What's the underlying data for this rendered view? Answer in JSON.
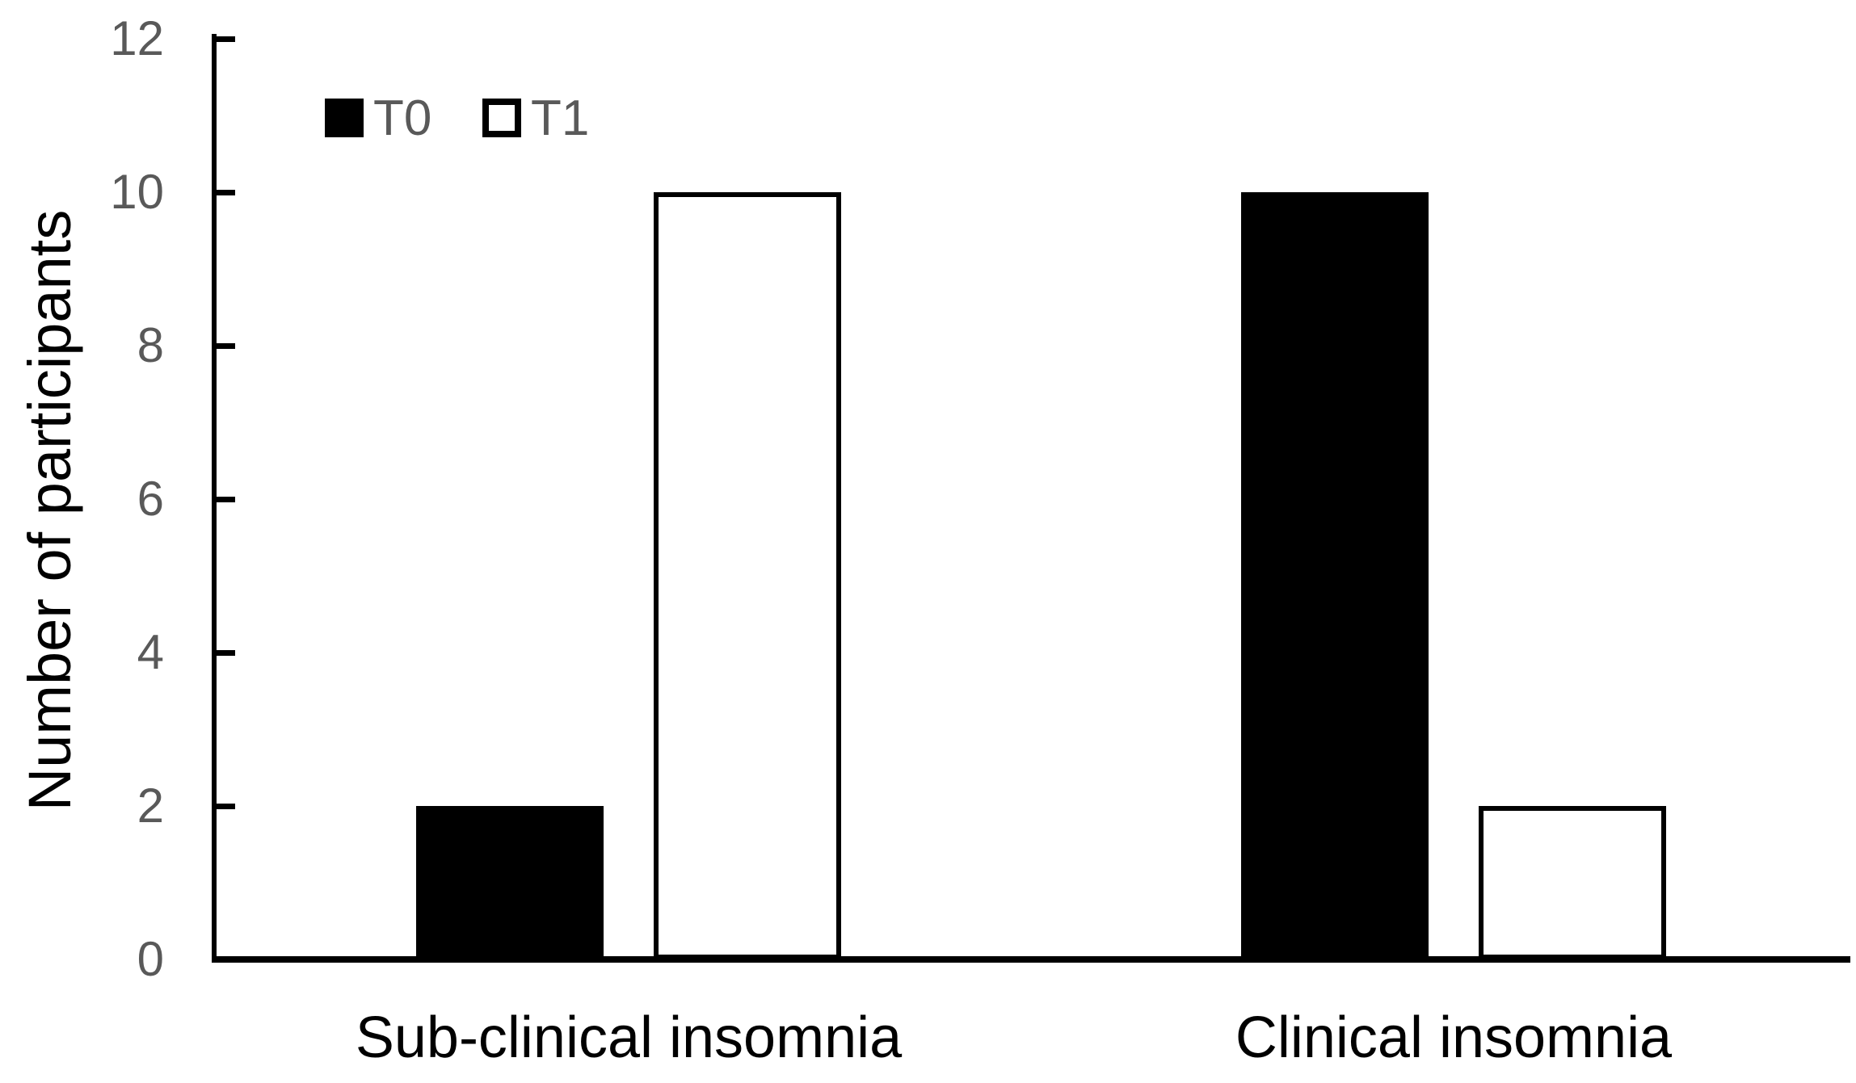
{
  "chart_data": {
    "type": "bar",
    "title": "",
    "categories": [
      "Sub-clinical insomnia",
      "Clinical insomnia"
    ],
    "series": [
      {
        "name": "T0",
        "values": [
          2,
          10
        ],
        "style": "solid",
        "fill": "#000000"
      },
      {
        "name": "T1",
        "values": [
          10,
          2
        ],
        "style": "outlined",
        "fill": "#ffffff",
        "outline": "#000000"
      }
    ],
    "xlabel": "",
    "ylabel": "Number of participants",
    "ylim": [
      0,
      12
    ],
    "yticks": [
      0,
      2,
      4,
      6,
      8,
      10,
      12
    ],
    "grid": false,
    "legend_position": "top-left-inside",
    "colors": {
      "bar_t0": "#000000",
      "bar_t1_fill": "#ffffff",
      "bar_t1_outline": "#000000",
      "axis": "#000000",
      "tick_label": "#595959",
      "legend_label": "#595959",
      "category_label": "#000000",
      "background": "#ffffff"
    }
  }
}
